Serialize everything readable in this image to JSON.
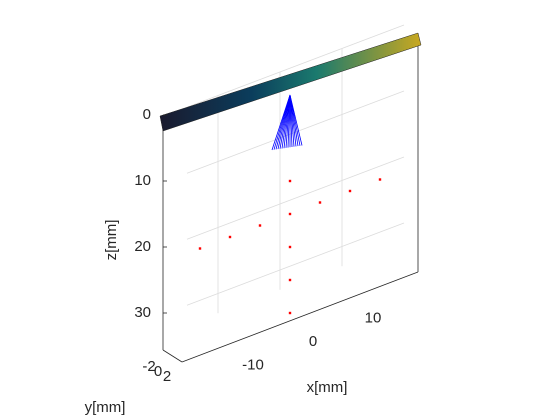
{
  "chart_data": {
    "type": "scatter3d",
    "xlabel": "x[mm]",
    "ylabel": "y[mm]",
    "zlabel": "z[mm]",
    "xlim": [
      -20,
      20
    ],
    "ylim": [
      -2,
      2
    ],
    "zlim": [
      0,
      33
    ],
    "xticks": [
      -10,
      0,
      10
    ],
    "yticks": [
      -2,
      0,
      2
    ],
    "zticks": [
      0,
      10,
      20,
      30
    ],
    "grid": true,
    "zreversed": true,
    "series": [
      {
        "color": "#ff0000",
        "x": [
          -15,
          -10,
          -5,
          0,
          5,
          10,
          15,
          0,
          0,
          0,
          0
        ],
        "y": [
          0,
          0,
          0,
          0,
          0,
          0,
          0,
          0,
          0,
          0,
          0
        ],
        "z": [
          15,
          15,
          15,
          15,
          15,
          15,
          15,
          10,
          20,
          25,
          30
        ]
      }
    ]
  }
}
